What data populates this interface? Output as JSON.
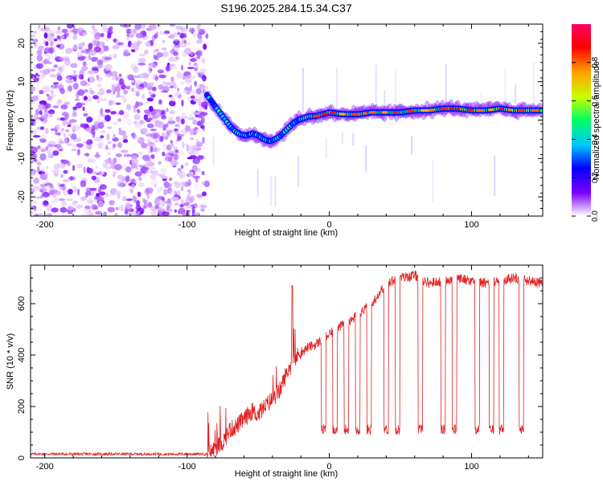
{
  "title": "S196.2025.284.15.34.C37",
  "chart_data": [
    {
      "type": "heatmap",
      "name": "spectrogram",
      "xlabel": "Height of straight line (km)",
      "ylabel": "Frequency (Hz)",
      "xlim": [
        -210,
        150
      ],
      "ylim": [
        -25,
        25
      ],
      "xticks": [
        -200,
        -100,
        0,
        100
      ],
      "yticks": [
        -20,
        -10,
        0,
        10,
        20
      ],
      "noise_region_x": [
        -210,
        -86
      ],
      "ridge": {
        "x": [
          -86,
          -82,
          -78,
          -74,
          -70,
          -66,
          -62,
          -58,
          -54,
          -50,
          -46,
          -42,
          -38,
          -34,
          -30,
          -26,
          -22,
          -18,
          -14,
          -10,
          -5,
          0,
          10,
          20,
          30,
          40,
          50,
          60,
          70,
          80,
          90,
          100,
          110,
          120,
          130,
          140,
          150
        ],
        "y": [
          6.5,
          4.5,
          2.5,
          0.5,
          -1.5,
          -3.0,
          -3.8,
          -4.0,
          -3.5,
          -4.0,
          -5.0,
          -5.5,
          -5.0,
          -4.0,
          -2.5,
          -1.0,
          0.0,
          0.5,
          1.0,
          1.0,
          1.5,
          2.0,
          1.5,
          1.5,
          2.0,
          2.0,
          2.0,
          2.5,
          2.5,
          3.0,
          3.0,
          2.5,
          2.5,
          3.0,
          2.5,
          2.5,
          2.5
        ]
      },
      "colorbar": {
        "label": "Normalized spectral amplitude",
        "ticks": [
          "0.0",
          "0.2",
          "0.4",
          "0.6",
          "0.8"
        ],
        "tick_values": [
          0,
          0.2,
          0.4,
          0.6,
          0.8
        ],
        "range": [
          0,
          1
        ],
        "colors": [
          "#ffffff",
          "#7e00ff",
          "#0000ff",
          "#00c8ff",
          "#00ff60",
          "#c8ff00",
          "#ffa000",
          "#ff0000",
          "#ff0064"
        ]
      }
    },
    {
      "type": "line",
      "name": "snr",
      "xlabel": "Height of straight line (km)",
      "ylabel": "SNR (10 * v/v)",
      "xlim": [
        -210,
        150
      ],
      "ylim": [
        0,
        750
      ],
      "xticks": [
        -200,
        -100,
        0,
        100
      ],
      "yticks": [
        0,
        200,
        400,
        600
      ],
      "color": "#e02020",
      "profile_x": [
        -210,
        -86,
        -82,
        -75,
        -70,
        -66,
        -60,
        -55,
        -50,
        -45,
        -40,
        -35,
        -30,
        -25,
        -20,
        -15,
        -10,
        -5,
        0,
        5,
        10,
        15,
        20,
        30,
        40,
        50,
        60,
        70,
        80,
        90,
        100,
        110,
        120,
        130,
        140,
        150
      ],
      "profile_y": [
        15,
        15,
        30,
        60,
        110,
        120,
        150,
        180,
        170,
        200,
        230,
        260,
        330,
        380,
        410,
        430,
        440,
        460,
        480,
        500,
        520,
        530,
        560,
        600,
        680,
        700,
        710,
        680,
        690,
        700,
        690,
        680,
        690,
        700,
        690,
        680
      ],
      "dips_x": [
        -4,
        4,
        12,
        20,
        28,
        40,
        48,
        64,
        80,
        88,
        104,
        114,
        121,
        135
      ],
      "dip_level": 110,
      "peak_x": -26,
      "peak_y": 670
    }
  ]
}
